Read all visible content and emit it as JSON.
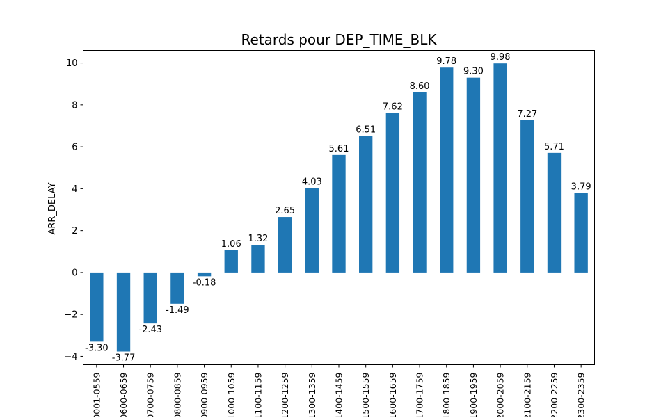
{
  "chart_data": {
    "type": "bar",
    "title": "Retards pour DEP_TIME_BLK",
    "xlabel": "",
    "ylabel": "ARR_DELAY",
    "categories": [
      "0001-0559",
      "0600-0659",
      "0700-0759",
      "0800-0859",
      "0900-0959",
      "1000-1059",
      "1100-1159",
      "1200-1259",
      "1300-1359",
      "1400-1459",
      "1500-1559",
      "1600-1659",
      "1700-1759",
      "1800-1859",
      "1900-1959",
      "2000-2059",
      "2100-2159",
      "2200-2259",
      "2300-2359"
    ],
    "values": [
      -3.3,
      -3.77,
      -2.43,
      -1.49,
      -0.18,
      1.06,
      1.32,
      2.65,
      4.03,
      5.61,
      6.51,
      7.62,
      8.6,
      9.78,
      9.3,
      9.98,
      7.27,
      5.71,
      3.79
    ],
    "data_labels": [
      "-3.30",
      "-3.77",
      "-2.43",
      "-1.49",
      "-0.18",
      "1.06",
      "1.32",
      "2.65",
      "4.03",
      "5.61",
      "6.51",
      "7.62",
      "8.60",
      "9.78",
      "9.30",
      "9.98",
      "7.27",
      "5.71",
      "3.79"
    ],
    "yticks": [
      -4,
      -2,
      0,
      2,
      4,
      6,
      8,
      10
    ],
    "ylim": [
      -4.4,
      10.6
    ],
    "grid": false,
    "legend": "none",
    "bar_color": "#1f77b4"
  }
}
